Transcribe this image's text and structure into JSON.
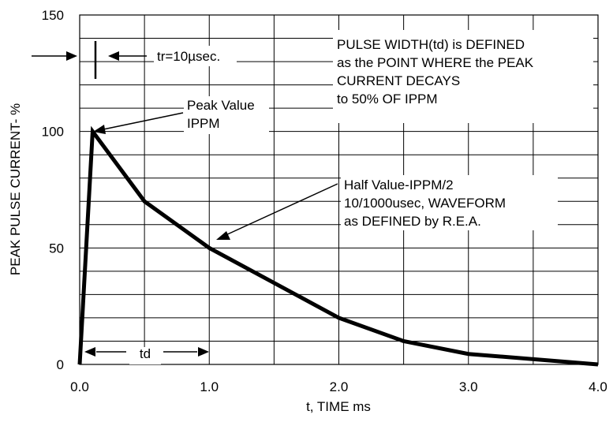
{
  "chart_data": {
    "type": "line",
    "xlabel": "t, TIME ms",
    "ylabel": "PEAK PULSE CURRENT- %",
    "xlim": [
      0,
      4
    ],
    "ylim": [
      0,
      150
    ],
    "x_ticks": [
      "0.0",
      "1.0",
      "2.0",
      "3.0",
      "4.0"
    ],
    "y_ticks": [
      "0",
      "50",
      "100",
      "150"
    ],
    "x_tick_values": [
      0,
      1,
      2,
      3,
      4
    ],
    "y_tick_values": [
      0,
      50,
      100,
      150
    ],
    "grid": true,
    "series": [
      {
        "x": [
          0,
          0.1,
          0.5,
          1.0,
          2.0,
          2.5,
          3.0,
          4.0
        ],
        "y": [
          0,
          100,
          70,
          50,
          20,
          10,
          4.5,
          0
        ]
      }
    ],
    "annotations": {
      "peak_line1": "Peak Value",
      "peak_line2": "IPPM",
      "tr": "tr=10µsec.",
      "td": "td",
      "definition_line1": "PULSE WIDTH(td) is DEFINED",
      "definition_line2": "as the POINT WHERE the PEAK",
      "definition_line3": "CURRENT DECAYS",
      "definition_line4": "to 50% OF IPPM",
      "half_line1": "Half Value-IPPM/2",
      "half_line2": "10/1000usec, WAVEFORM",
      "half_line3": "as DEFINED by R.E.A."
    }
  }
}
